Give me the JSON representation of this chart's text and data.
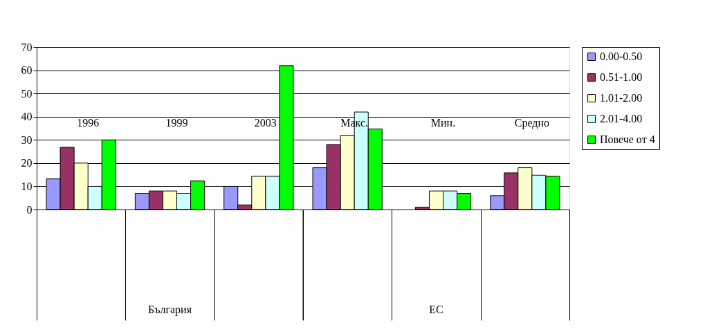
{
  "chart_data": {
    "type": "bar",
    "categories": [
      "1996",
      "1999",
      "2003",
      "Макс.",
      "Мин.",
      "Средно"
    ],
    "series": [
      {
        "name": "0.00-0.50",
        "color": "#9999ff",
        "values": [
          13.2,
          7,
          10,
          18,
          null,
          6
        ]
      },
      {
        "name": "0.51-1.00",
        "color": "#993366",
        "values": [
          26.8,
          8,
          2,
          28,
          1,
          15.8
        ]
      },
      {
        "name": "1.01-2.00",
        "color": "#ffffcc",
        "values": [
          20,
          8,
          14.3,
          32,
          8,
          18
        ]
      },
      {
        "name": "2.01-4.00",
        "color": "#ccffff",
        "values": [
          10,
          7,
          14.3,
          42,
          8,
          14.8
        ]
      },
      {
        "name": "Повече от 4",
        "color": "#00ff00",
        "values": [
          30,
          12.3,
          62,
          34.7,
          7,
          14.3
        ]
      }
    ],
    "ylim": [
      0,
      70
    ],
    "yticks": [
      0,
      10,
      20,
      30,
      40,
      50,
      60,
      70
    ],
    "grid": "y",
    "legend": "right",
    "annotations": [
      "България",
      "ЕС"
    ]
  }
}
